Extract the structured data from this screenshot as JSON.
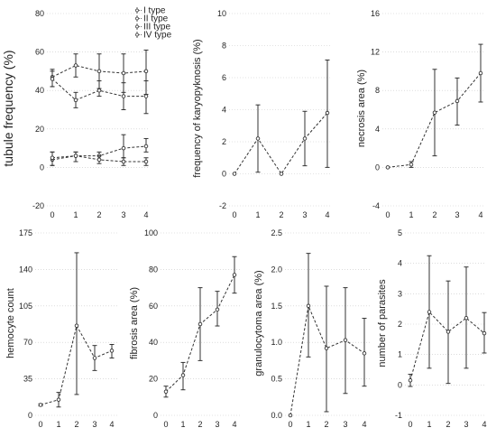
{
  "chart_data": [
    {
      "type": "line",
      "ylabel": "tubule frequency (%)",
      "ylim": [
        -20,
        80
      ],
      "yticks": [
        -20,
        0,
        20,
        40,
        60,
        80
      ],
      "x": [
        0,
        1,
        2,
        3,
        4
      ],
      "legend": [
        "I type",
        "II type",
        "III type",
        "IV type"
      ],
      "series": [
        {
          "name": "I type",
          "values": [
            47,
            53,
            50,
            49,
            50
          ],
          "err_low": [
            42,
            47,
            41,
            39,
            38
          ],
          "err_high": [
            51,
            59,
            59,
            59,
            61
          ]
        },
        {
          "name": "II type",
          "values": [
            46,
            35,
            40,
            37,
            37
          ],
          "err_low": [
            42,
            31,
            37,
            30,
            28
          ],
          "err_high": [
            50,
            39,
            45,
            44,
            45
          ]
        },
        {
          "name": "III type",
          "values": [
            4,
            6,
            6,
            10,
            11
          ],
          "err_low": [
            1,
            3,
            4,
            5,
            8
          ],
          "err_high": [
            8,
            8,
            8,
            17,
            15
          ]
        },
        {
          "name": "IV type",
          "values": [
            5,
            6,
            4,
            3,
            3
          ],
          "err_low": [
            1,
            3,
            2,
            1,
            1
          ],
          "err_high": [
            8,
            8,
            6,
            5,
            5
          ]
        }
      ]
    },
    {
      "type": "line",
      "ylabel": "frequency of karyopyknosis (%)",
      "ylim": [
        -2,
        10
      ],
      "yticks": [
        -2,
        0,
        2,
        4,
        6,
        8,
        10
      ],
      "x": [
        0,
        1,
        2,
        3,
        4
      ],
      "series": [
        {
          "values": [
            0,
            2.2,
            0,
            2.2,
            3.8
          ],
          "err_low": [
            0,
            0.1,
            0,
            0.5,
            0.4
          ],
          "err_high": [
            0,
            4.3,
            0,
            3.9,
            7.1
          ]
        }
      ]
    },
    {
      "type": "line",
      "ylabel": "necrosis area (%)",
      "ylim": [
        -4,
        16
      ],
      "yticks": [
        -4,
        0,
        4,
        8,
        12,
        16
      ],
      "x": [
        0,
        1,
        2,
        3,
        4
      ],
      "series": [
        {
          "values": [
            0,
            0.3,
            5.7,
            6.9,
            9.8
          ],
          "err_low": [
            0,
            0,
            1.2,
            4.4,
            6.8
          ],
          "err_high": [
            0,
            0.6,
            10.2,
            9.3,
            12.8
          ]
        }
      ]
    },
    {
      "type": "line",
      "ylabel": "hemocyte count",
      "ylim": [
        0,
        175
      ],
      "yticks": [
        0,
        35,
        70,
        105,
        140,
        175
      ],
      "x": [
        0,
        1,
        2,
        3,
        4
      ],
      "series": [
        {
          "values": [
            10,
            15,
            86,
            55,
            62
          ],
          "err_low": [
            9,
            8,
            20,
            43,
            55
          ],
          "err_high": [
            11,
            22,
            156,
            67,
            68
          ]
        }
      ]
    },
    {
      "type": "line",
      "ylabel": "fibrosis area (%)",
      "ylim": [
        0,
        100
      ],
      "yticks": [
        0,
        20,
        40,
        60,
        80,
        100
      ],
      "x": [
        0,
        1,
        2,
        3,
        4
      ],
      "series": [
        {
          "values": [
            13,
            22,
            50,
            58,
            77
          ],
          "err_low": [
            10,
            14,
            30,
            49,
            67
          ],
          "err_high": [
            16,
            29,
            70,
            68,
            87
          ]
        }
      ]
    },
    {
      "type": "line",
      "ylabel": "granulocytoma area (%)",
      "ylim": [
        0,
        2.5
      ],
      "yticks": [
        0.0,
        0.5,
        1.0,
        1.5,
        2.0,
        2.5
      ],
      "x": [
        0,
        1,
        2,
        3,
        4
      ],
      "series": [
        {
          "values": [
            0,
            1.5,
            0.92,
            1.03,
            0.85
          ],
          "err_low": [
            0,
            0.8,
            0.05,
            0.3,
            0.4
          ],
          "err_high": [
            0,
            2.22,
            1.77,
            1.75,
            1.33
          ]
        }
      ]
    },
    {
      "type": "line",
      "ylabel": "number of parasites",
      "ylim": [
        -1,
        5
      ],
      "yticks": [
        -1,
        0,
        1,
        2,
        3,
        4,
        5
      ],
      "x": [
        0,
        1,
        2,
        3,
        4
      ],
      "series": [
        {
          "values": [
            0.15,
            2.4,
            1.75,
            2.2,
            1.7
          ],
          "err_low": [
            -0.05,
            0.55,
            0.05,
            0.55,
            1.05
          ],
          "err_high": [
            0.35,
            4.25,
            3.42,
            3.88,
            2.38
          ]
        }
      ]
    }
  ]
}
